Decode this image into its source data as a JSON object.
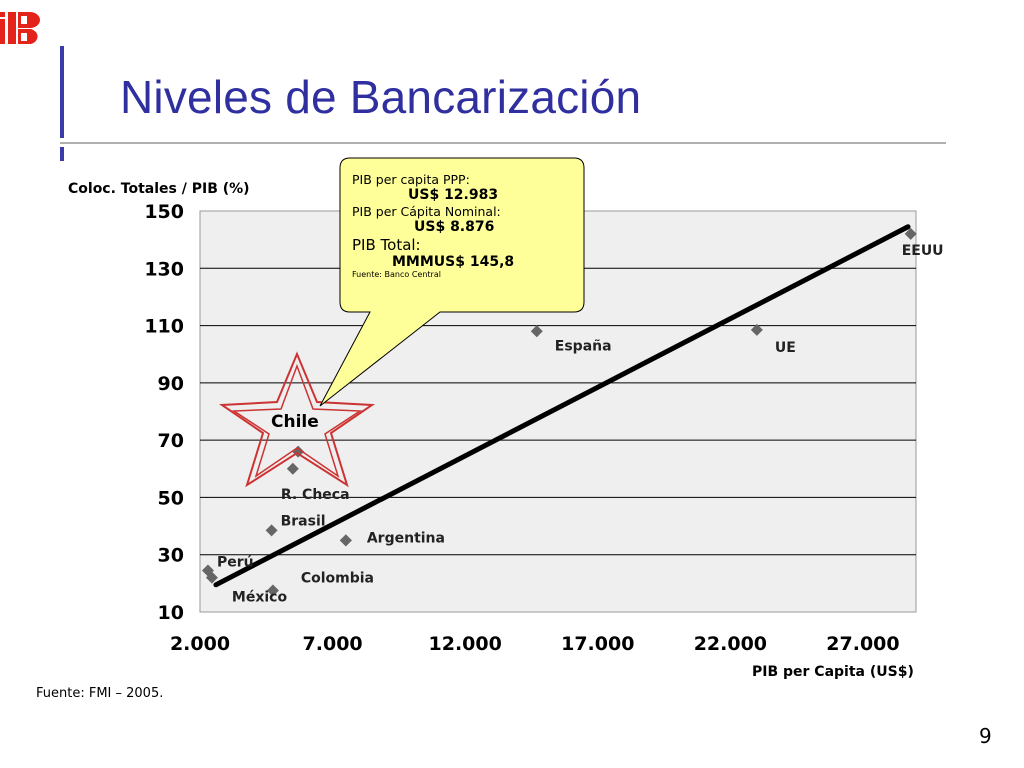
{
  "slide": {
    "title": "Niveles de Bancarización",
    "source": "Fuente: FMI – 2005.",
    "page_number": "9",
    "logo_icon": "bank-logo-icon",
    "accent_color": "#2f2f9f"
  },
  "callout": {
    "line1": "PIB per capita PPP:",
    "line2": "US$ 12.983",
    "line3": "PIB per Cápita Nominal:",
    "line4": "US$ 8.876",
    "line5": "PIB Total:",
    "line6": "MMMUS$ 145,8",
    "line7": "Fuente: Banco Central",
    "fill_color": "#ffff99"
  },
  "chart_data": {
    "type": "scatter",
    "ylabel": "Coloc. Totales / PIB (%)",
    "xlabel": "PIB per Capita (US$)",
    "xlim": [
      2000,
      29000
    ],
    "ylim": [
      10,
      150
    ],
    "xticks": [
      2000,
      7000,
      12000,
      17000,
      22000,
      27000
    ],
    "xtick_labels": [
      "2.000",
      "7.000",
      "12.000",
      "17.000",
      "22.000",
      "27.000"
    ],
    "yticks": [
      10,
      30,
      50,
      70,
      90,
      110,
      130,
      150
    ],
    "ytick_labels": [
      "10",
      "30",
      "50",
      "70",
      "90",
      "110",
      "130",
      "150"
    ],
    "grid": true,
    "points": [
      {
        "label": "Perú",
        "x": 2300,
        "y": 24.5
      },
      {
        "label": "",
        "x": 2450,
        "y": 22
      },
      {
        "label": "México",
        "x": 4750,
        "y": 17.5
      },
      {
        "label": "Brasil",
        "x": 4700,
        "y": 38.5
      },
      {
        "label": "R. Checa",
        "x": 5500,
        "y": 60
      },
      {
        "label": "",
        "x": 5700,
        "y": 66
      },
      {
        "label": "Colombia",
        "x": 7500,
        "y": 35
      },
      {
        "label": "Argentina",
        "x": 7500,
        "y": 35
      },
      {
        "label": "España",
        "x": 14700,
        "y": 108
      },
      {
        "label": "UE",
        "x": 23000,
        "y": 108.5
      },
      {
        "label": "EEUU",
        "x": 28800,
        "y": 142
      }
    ],
    "trendline": {
      "x": [
        2600,
        28700
      ],
      "y": [
        19.5,
        144.5
      ]
    },
    "highlight_label": "Chile",
    "highlight_color": "#cc3333",
    "point_color": "#666666",
    "plot_background": "#efefef"
  }
}
